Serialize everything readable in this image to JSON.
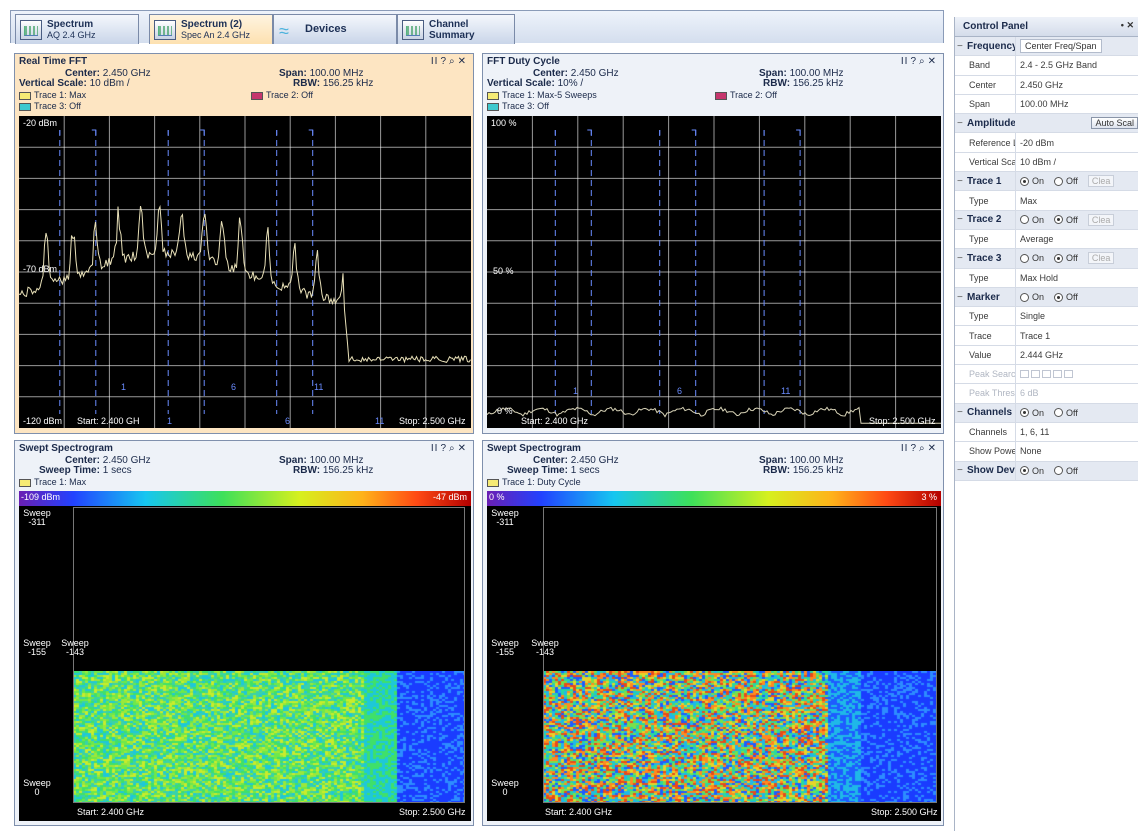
{
  "tabs": [
    {
      "line1": "Spectrum",
      "line2": "AQ 2.4 GHz",
      "active": false,
      "icon": "spectrum-icon"
    },
    {
      "line1": "Spectrum (2)",
      "line2": "Spec An 2.4 GHz",
      "active": true,
      "icon": "spectrum-icon"
    },
    {
      "line1": "Devices",
      "line2": "",
      "active": false,
      "icon": "devices-icon"
    },
    {
      "line1": "Channel",
      "line2": "Summary",
      "active": false,
      "icon": "channel-summary-icon"
    }
  ],
  "panel_controls": {
    "pause": "II",
    "help": "?",
    "zoom": "⌕",
    "close": "✕"
  },
  "fft": {
    "title": "Real Time FFT",
    "center_label": "Center:",
    "center": "2.450 GHz",
    "span_label": "Span:",
    "span": "100.00 MHz",
    "vscale_label": "Vertical Scale:",
    "vscale": "10 dBm /",
    "rbw_label": "RBW:",
    "rbw": "156.25 kHz",
    "trace1": "Trace 1: Max",
    "trace2": "Trace 2: Off",
    "trace3": "Trace 3: Off",
    "y_top": "-20 dBm",
    "y_mid": "-70 dBm",
    "y_bot": "-120 dBm",
    "start": "Start: 2.400 GH",
    "stop": "Stop: 2.500 GHz",
    "channels": [
      "1",
      "6",
      "11",
      "1",
      "6",
      "11"
    ]
  },
  "duty": {
    "title": "FFT Duty Cycle",
    "center_label": "Center:",
    "center": "2.450 GHz",
    "span_label": "Span:",
    "span": "100.00 MHz",
    "vscale_label": "Vertical Scale:",
    "vscale": "10% /",
    "rbw_label": "RBW:",
    "rbw": "156.25 kHz",
    "trace1": "Trace 1: Max-5 Sweeps",
    "trace2": "Trace 2: Off",
    "trace3": "Trace 3: Off",
    "y_top": "100 %",
    "y_mid": "50 %",
    "y_bot": "0 %",
    "start": "Start: 2.400 GHz",
    "stop": "Stop: 2.500 GHz",
    "channels": [
      "1",
      "6",
      "11"
    ]
  },
  "spec1": {
    "title": "Swept Spectrogram",
    "center_label": "Center:",
    "center": "2.450 GHz",
    "span_label": "Span:",
    "span": "100.00 MHz",
    "sweep_label": "Sweep Time:",
    "sweep": "1 secs",
    "rbw_label": "RBW:",
    "rbw": "156.25 kHz",
    "trace1": "Trace 1: Max",
    "cb_left": "-109 dBm",
    "cb_right": "-47 dBm",
    "sweep_top": "Sweep -311",
    "sweep_mid": "Sweep -155",
    "sweep_cur": "Sweep -143",
    "sweep_bot": "Sweep 0",
    "start": "Start: 2.400 GHz",
    "stop": "Stop: 2.500 GHz"
  },
  "spec2": {
    "title": "Swept Spectrogram",
    "center_label": "Center:",
    "center": "2.450 GHz",
    "span_label": "Span:",
    "span": "100.00",
    "span_unit": "MHz",
    "sweep_label": "Sweep Time:",
    "sweep": "1 secs",
    "rbw_label": "RBW:",
    "rbw": "156.25",
    "rbw_unit": "kHz",
    "trace1": "Trace 1: Duty Cycle",
    "cb_left": "0 %",
    "cb_right": "3 %",
    "sweep_top": "Sweep -311",
    "sweep_mid": "Sweep -155",
    "sweep_cur": "Sweep -143",
    "sweep_bot": "Sweep 0",
    "start": "Start: 2.400 GHz",
    "stop": "Stop: 2.500 GHz"
  },
  "control_panel": {
    "title": "Control Panel",
    "pin": "• ✕",
    "frequency": {
      "label": "Frequency",
      "mode": "Center Freq/Span"
    },
    "band": {
      "label": "Band",
      "value": "2.4 - 2.5 GHz Band"
    },
    "center": {
      "label": "Center",
      "value": "2.450 GHz"
    },
    "span": {
      "label": "Span",
      "value": "100.00 MHz"
    },
    "amplitude": {
      "label": "Amplitude",
      "button": "Auto Scal"
    },
    "reference": {
      "label": "Reference L",
      "value": "-20 dBm"
    },
    "vertical": {
      "label": "Vertical Scal",
      "value": "10 dBm /"
    },
    "trace1": {
      "label": "Trace 1",
      "on": "On",
      "off": "Off",
      "clear": "Clea",
      "type_label": "Type",
      "type": "Max"
    },
    "trace2": {
      "label": "Trace 2",
      "on": "On",
      "off": "Off",
      "clear": "Clea",
      "type_label": "Type",
      "type": "Average"
    },
    "trace3": {
      "label": "Trace 3",
      "on": "On",
      "off": "Off",
      "clear": "Clea",
      "type_label": "Type",
      "type": "Max Hold"
    },
    "marker": {
      "label": "Marker",
      "on": "On",
      "off": "Off",
      "type_label": "Type",
      "type": "Single",
      "trace_label": "Trace",
      "trace": "Trace 1",
      "value_label": "Value",
      "value": "2.444 GHz",
      "peak_search": "Peak Search",
      "peak_thresh": "Peak Thresh",
      "peak_thresh_value": "6 dB"
    },
    "channels": {
      "label": "Channels",
      "on": "On",
      "off": "Off",
      "list_label": "Channels",
      "list": "1, 6, 11",
      "show_power_label": "Show Power",
      "show_power": "None"
    },
    "show_devices": {
      "label": "Show Devic",
      "on": "On",
      "off": "Off"
    }
  },
  "colors": {
    "trace": "#e8e0b8",
    "grid": "#ffffff",
    "channel_marker": "#6a8cff",
    "duty_trace": "#d9d4b8"
  }
}
